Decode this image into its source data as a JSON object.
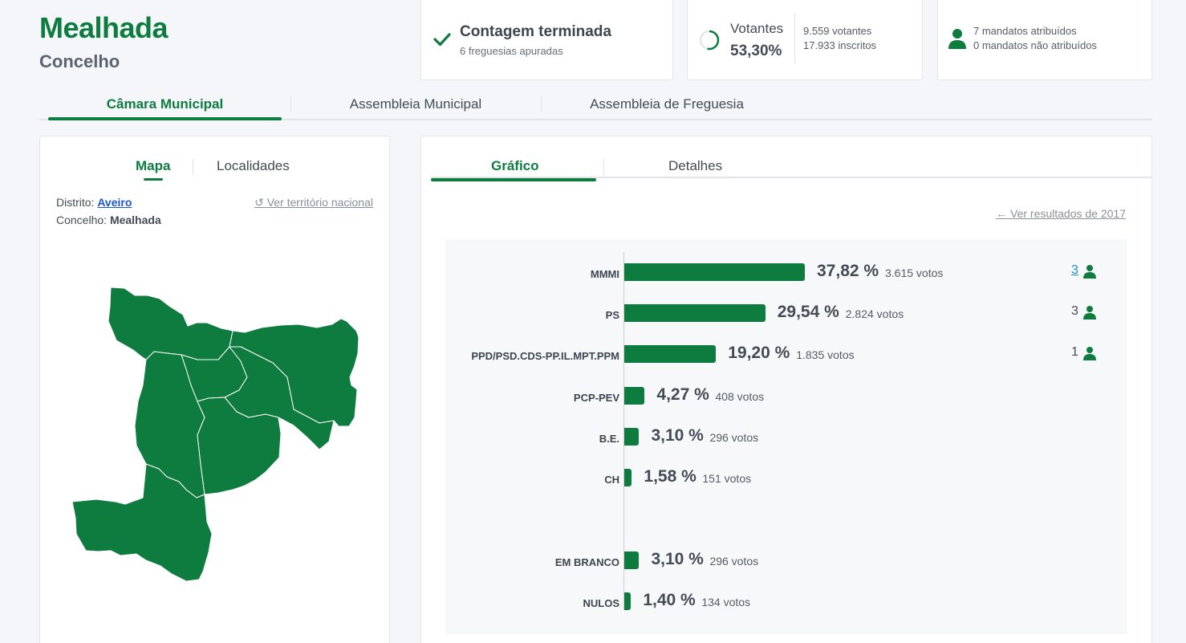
{
  "header": {
    "title": "Mealhada",
    "subtitle": "Concelho"
  },
  "status": {
    "main": "Contagem terminada",
    "sub": "6 freguesias apuradas",
    "icon": "check-icon"
  },
  "voters": {
    "label": "Votantes",
    "percentage": "53,30%",
    "count": "9.559 votantes",
    "registered": "17.933 inscritos",
    "turnout_fraction": 0.533
  },
  "seats": {
    "assigned": "7 mandatos atribuídos",
    "unassigned": "0 mandatos não atribuídos"
  },
  "main_tabs": [
    {
      "label": "Câmara Municipal",
      "active": true
    },
    {
      "label": "Assembleia Municipal",
      "active": false
    },
    {
      "label": "Assembleia de Freguesia",
      "active": false
    }
  ],
  "map_panel": {
    "tabs": [
      {
        "label": "Mapa",
        "active": true
      },
      {
        "label": "Localidades",
        "active": false
      }
    ],
    "district_label": "Distrito:",
    "district_value": "Aveiro",
    "county_label": "Concelho:",
    "county_value": "Mealhada",
    "national_link": "Ver território nacional"
  },
  "chart_panel": {
    "tabs": [
      {
        "label": "Gráfico",
        "active": true
      },
      {
        "label": "Detalhes",
        "active": false
      }
    ],
    "previous_link": "Ver resultados de 2017"
  },
  "colors": {
    "accent": "#0e7c3f",
    "link": "#1a56c9"
  },
  "chart_data": {
    "type": "bar",
    "orientation": "horizontal",
    "categories": [
      "MMMI",
      "PS",
      "PPD/PSD.CDS-PP.IL.MPT.PPM",
      "PCP-PEV",
      "B.E.",
      "CH",
      "EM BRANCO",
      "NULOS"
    ],
    "values": [
      37.82,
      29.54,
      19.2,
      4.27,
      3.1,
      1.58,
      3.1,
      1.4
    ],
    "percent_labels": [
      "37,82 %",
      "29,54 %",
      "19,20 %",
      "4,27 %",
      "3,10 %",
      "1,58 %",
      "3,10 %",
      "1,40 %"
    ],
    "votes_labels": [
      "3.615 votos",
      "2.824 votos",
      "1.835 votos",
      "408 votos",
      "296 votos",
      "151 votos",
      "296 votos",
      "134 votos"
    ],
    "seats": [
      "3",
      "3",
      "1",
      "",
      "",
      "",
      "",
      ""
    ]
  }
}
